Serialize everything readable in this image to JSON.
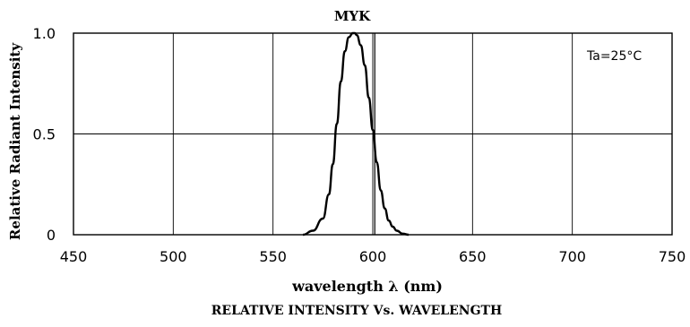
{
  "chart_data": {
    "type": "line",
    "title": "MYK",
    "xlabel": "wavelength λ (nm)",
    "ylabel": "Relative Radiant Intensity",
    "caption": "RELATIVE INTENSITY Vs. WAVELENGTH",
    "annotation": "Ta=25°C",
    "xlim": [
      450,
      750
    ],
    "ylim": [
      0,
      1.0
    ],
    "x_ticks": [
      450,
      500,
      550,
      600,
      650,
      700,
      750
    ],
    "x_tick_labels": [
      "450",
      "500",
      "550",
      "600",
      "650",
      "700",
      "750"
    ],
    "y_ticks": [
      0,
      0.5,
      1.0
    ],
    "y_tick_labels": [
      "0",
      "0.5",
      "1.0"
    ],
    "grid": true,
    "marker_line_x": 601,
    "series": [
      {
        "color": "#000000",
        "x": [
          565,
          570,
          575,
          578,
          580,
          582,
          584,
          586,
          588,
          590,
          591,
          592,
          594,
          596,
          598,
          600,
          602,
          604,
          606,
          608,
          610,
          612,
          615,
          618
        ],
        "y": [
          0.0,
          0.02,
          0.08,
          0.2,
          0.35,
          0.55,
          0.76,
          0.91,
          0.98,
          1.0,
          1.0,
          0.99,
          0.94,
          0.84,
          0.68,
          0.52,
          0.36,
          0.22,
          0.13,
          0.07,
          0.04,
          0.02,
          0.005,
          0.0
        ]
      }
    ]
  }
}
